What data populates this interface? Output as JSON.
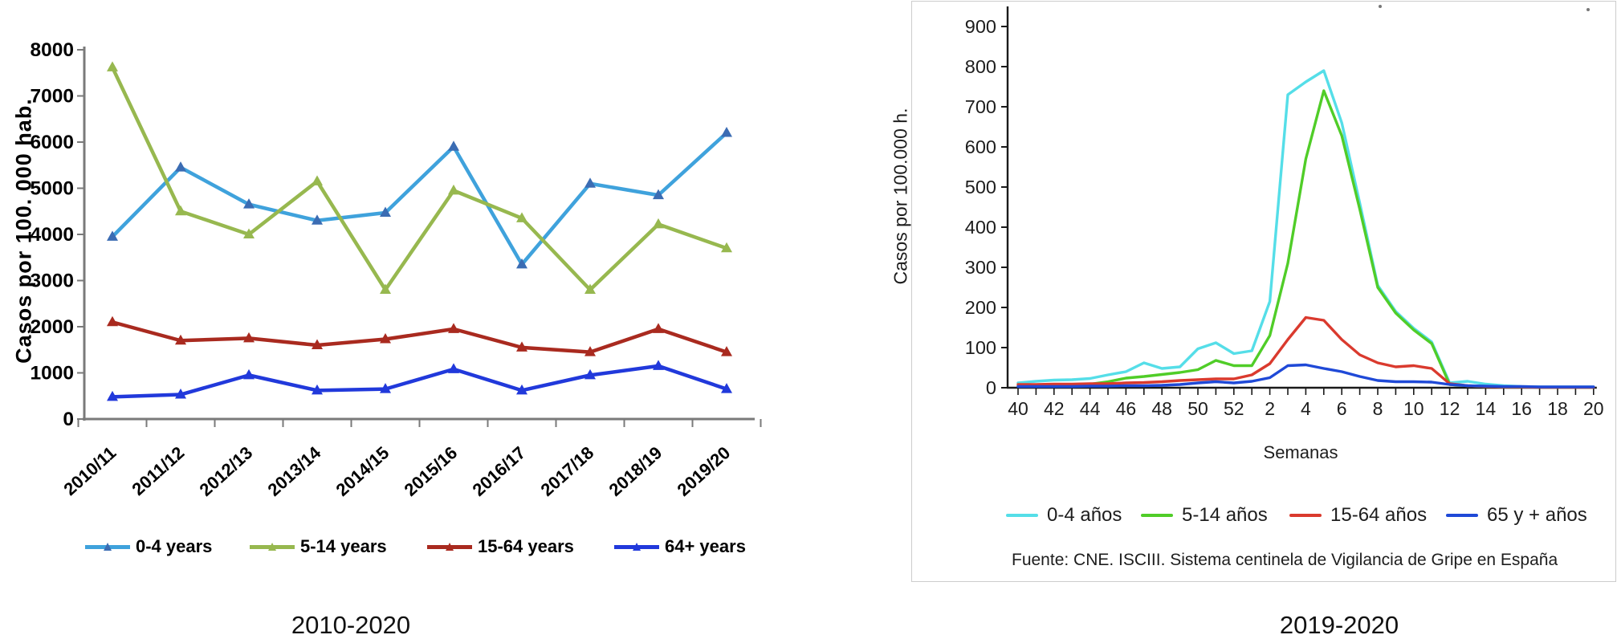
{
  "page": {
    "background": "#ffffff"
  },
  "chart_data": [
    {
      "type": "line",
      "caption": "2010-2020",
      "ylabel": "Casos por 100. 000 hab.",
      "xlabel": "",
      "ylim": [
        0,
        8000
      ],
      "ytick_step": 1000,
      "grid": false,
      "legend_position": "bottom",
      "marker": "triangle",
      "categories": [
        "2010/11",
        "2011/12",
        "2012/13",
        "2013/14",
        "2014/15",
        "2015/16",
        "2016/17",
        "2017/18",
        "2018/19",
        "2019/20"
      ],
      "series": [
        {
          "name": "0-4 years",
          "color": "#3FA2DC",
          "marker_color": "#3B6CB3",
          "values": [
            3950,
            5450,
            4650,
            4300,
            4470,
            5900,
            3350,
            5100,
            4850,
            6200
          ]
        },
        {
          "name": "5-14 years",
          "color": "#97B84F",
          "values": [
            7620,
            4500,
            4000,
            5150,
            2800,
            4950,
            4350,
            2800,
            4220,
            3700
          ]
        },
        {
          "name": "15-64 years",
          "color": "#A92A1F",
          "values": [
            2100,
            1700,
            1750,
            1600,
            1730,
            1950,
            1550,
            1450,
            1950,
            1450
          ]
        },
        {
          "name": "64+ years",
          "color": "#2139DB",
          "values": [
            480,
            530,
            950,
            620,
            650,
            1080,
            620,
            950,
            1150,
            650
          ]
        }
      ]
    },
    {
      "type": "line",
      "caption": "2019-2020",
      "ylabel": "Casos por 100.000 h.",
      "xlabel": "Semanas",
      "source": "Fuente: CNE. ISCIII. Sistema centinela de Vigilancia de Gripe en España",
      "ylim": [
        0,
        900
      ],
      "ytick_step": 100,
      "grid": false,
      "legend_position": "bottom",
      "marker": "none",
      "xtick_label_rule": "even-weeks-only",
      "categories": [
        "40",
        "41",
        "42",
        "43",
        "44",
        "45",
        "46",
        "47",
        "48",
        "49",
        "50",
        "51",
        "52",
        "1",
        "2",
        "3",
        "4",
        "5",
        "6",
        "7",
        "8",
        "9",
        "10",
        "11",
        "12",
        "13",
        "14",
        "15",
        "16",
        "17",
        "18",
        "19",
        "20"
      ],
      "series": [
        {
          "name": "0-4 años",
          "color": "#55DEE8",
          "values": [
            12,
            16,
            19,
            20,
            23,
            32,
            40,
            62,
            48,
            52,
            97,
            112,
            85,
            92,
            215,
            730,
            762,
            790,
            660,
            460,
            255,
            190,
            148,
            114,
            12,
            16,
            9,
            5,
            3,
            2,
            2,
            2,
            2
          ]
        },
        {
          "name": "5-14 años",
          "color": "#50CD28",
          "values": [
            4,
            5,
            6,
            7,
            9,
            15,
            24,
            28,
            33,
            38,
            45,
            68,
            55,
            55,
            130,
            310,
            570,
            740,
            628,
            445,
            250,
            186,
            144,
            110,
            8,
            5,
            3,
            2,
            2,
            1,
            1,
            1,
            1
          ]
        },
        {
          "name": "15-64 años",
          "color": "#DA3A2E",
          "values": [
            8,
            8,
            9,
            9,
            10,
            10,
            12,
            13,
            15,
            18,
            20,
            22,
            22,
            32,
            60,
            120,
            175,
            168,
            120,
            82,
            62,
            52,
            55,
            48,
            10,
            5,
            3,
            2,
            2,
            1,
            1,
            1,
            1
          ]
        },
        {
          "name": "65 y + años",
          "color": "#1F49D7",
          "values": [
            3,
            3,
            3,
            3,
            4,
            4,
            5,
            5,
            6,
            8,
            12,
            15,
            12,
            16,
            25,
            55,
            57,
            48,
            40,
            28,
            18,
            15,
            15,
            14,
            8,
            5,
            4,
            3,
            3,
            2,
            2,
            2,
            2
          ]
        }
      ]
    }
  ],
  "artifacts": {
    "dot_left": "",
    "dot_right": ""
  }
}
